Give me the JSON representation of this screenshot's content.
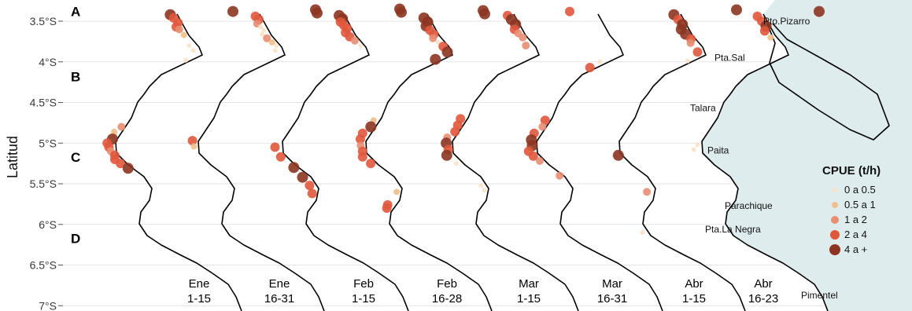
{
  "chart_data": {
    "type": "scatter",
    "ylabel": "Latitud",
    "y_ticks": [
      "3.5°S",
      "4°S",
      "4.5°S",
      "5°S",
      "5.5°S",
      "6°S",
      "6.5°S",
      "7°S"
    ],
    "ylim": [
      -7.0,
      -3.3
    ],
    "grid": true,
    "legend": {
      "title": "CPUE (t/h)",
      "placement": "right",
      "entries": [
        {
          "label": "0 a 0.5",
          "color": "#f8e3c8"
        },
        {
          "label": "0.5 a 1",
          "color": "#efc08c"
        },
        {
          "label": "1 a 2",
          "color": "#e88e72"
        },
        {
          "label": "2 a 4",
          "color": "#e0583c"
        },
        {
          "label": "4 a +",
          "color": "#8c3522"
        }
      ]
    },
    "bands": [
      {
        "label": "A",
        "lat": -3.38
      },
      {
        "label": "B",
        "lat": -4.18
      },
      {
        "label": "C",
        "lat": -5.17
      },
      {
        "label": "D",
        "lat": -6.17
      }
    ],
    "places": [
      {
        "name": "Pto.Pizarro",
        "lat": -3.5
      },
      {
        "name": "Pta.Sal",
        "lat": -3.95
      },
      {
        "name": "Talara",
        "lat": -4.57
      },
      {
        "name": "Paita",
        "lat": -5.09
      },
      {
        "name": "Parachique",
        "lat": -5.77
      },
      {
        "name": "Pta.La Negra",
        "lat": -6.06
      },
      {
        "name": "Pimentel",
        "lat": -6.87
      }
    ],
    "series": [
      {
        "name": "Ene 1-15",
        "line1": "Ene",
        "line2": "1-15",
        "points": [
          [
            -3.38,
            4
          ],
          [
            -3.42,
            4
          ],
          [
            -3.46,
            3
          ],
          [
            -3.52,
            3
          ],
          [
            -3.57,
            3
          ],
          [
            -3.6,
            2
          ],
          [
            -3.67,
            1
          ],
          [
            -3.8,
            0
          ],
          [
            -3.86,
            0
          ],
          [
            -3.98,
            0
          ],
          [
            -4.8,
            2
          ],
          [
            -4.86,
            1
          ],
          [
            -4.9,
            1
          ],
          [
            -4.95,
            4
          ],
          [
            -5.0,
            3
          ],
          [
            -5.05,
            3
          ],
          [
            -5.1,
            2
          ],
          [
            -5.15,
            3
          ],
          [
            -5.2,
            3
          ],
          [
            -5.25,
            3
          ],
          [
            -5.31,
            4
          ]
        ]
      },
      {
        "name": "Ene 16-31",
        "line1": "Ene",
        "line2": "16-31",
        "points": [
          [
            -3.36,
            4
          ],
          [
            -3.4,
            4
          ],
          [
            -3.44,
            3
          ],
          [
            -3.48,
            3
          ],
          [
            -3.53,
            2
          ],
          [
            -3.57,
            0
          ],
          [
            -3.61,
            0
          ],
          [
            -3.66,
            0
          ],
          [
            -3.71,
            2
          ],
          [
            -3.76,
            1
          ],
          [
            -3.8,
            0
          ],
          [
            -3.86,
            0
          ],
          [
            -4.97,
            3
          ],
          [
            -5.04,
            1
          ]
        ]
      },
      {
        "name": "Feb 1-15",
        "line1": "Feb",
        "line2": "1-15",
        "points": [
          [
            -3.35,
            4
          ],
          [
            -3.39,
            4
          ],
          [
            -3.43,
            4
          ],
          [
            -3.47,
            4
          ],
          [
            -3.51,
            3
          ],
          [
            -3.55,
            3
          ],
          [
            -3.59,
            3
          ],
          [
            -3.64,
            3
          ],
          [
            -3.69,
            3
          ],
          [
            -3.74,
            2
          ],
          [
            -3.8,
            0
          ],
          [
            -5.05,
            3
          ],
          [
            -5.17,
            3
          ],
          [
            -5.3,
            4
          ],
          [
            -5.42,
            4
          ],
          [
            -5.52,
            3
          ],
          [
            -5.62,
            3
          ]
        ]
      },
      {
        "name": "Feb 16-28",
        "line1": "Feb",
        "line2": "16-28",
        "points": [
          [
            -3.37,
            4
          ],
          [
            -3.41,
            4
          ],
          [
            -3.46,
            4
          ],
          [
            -3.51,
            4
          ],
          [
            -3.56,
            4
          ],
          [
            -3.61,
            3
          ],
          [
            -3.66,
            3
          ],
          [
            -3.71,
            2
          ],
          [
            -3.76,
            0
          ],
          [
            -3.81,
            3
          ],
          [
            -3.88,
            4
          ],
          [
            -3.97,
            4
          ],
          [
            -4.72,
            1
          ],
          [
            -4.8,
            4
          ],
          [
            -4.88,
            3
          ],
          [
            -4.95,
            3
          ],
          [
            -5.03,
            2
          ],
          [
            -5.1,
            3
          ],
          [
            -5.17,
            3
          ],
          [
            -5.25,
            3
          ],
          [
            -5.6,
            1
          ],
          [
            -5.76,
            3
          ],
          [
            -5.8,
            3
          ]
        ]
      },
      {
        "name": "Mar 1-15",
        "line1": "Mar",
        "line2": "1-15",
        "points": [
          [
            -3.38,
            3
          ],
          [
            -3.43,
            3
          ],
          [
            -3.48,
            4
          ],
          [
            -3.54,
            4
          ],
          [
            -3.6,
            3
          ],
          [
            -3.65,
            2
          ],
          [
            -3.7,
            2
          ],
          [
            -3.8,
            2
          ],
          [
            -4.7,
            3
          ],
          [
            -4.78,
            3
          ],
          [
            -4.86,
            3
          ],
          [
            -4.93,
            2
          ],
          [
            -5.0,
            4
          ],
          [
            -5.08,
            3
          ],
          [
            -5.15,
            4
          ],
          [
            -5.25,
            0
          ],
          [
            -5.52,
            0
          ],
          [
            -5.58,
            0
          ]
        ]
      },
      {
        "name": "Mar 16-31",
        "line1": "Mar",
        "line2": "16-31",
        "points": [
          [
            -4.0,
            0
          ],
          [
            -4.07,
            3
          ],
          [
            -4.72,
            3
          ],
          [
            -4.8,
            2
          ],
          [
            -4.88,
            3
          ],
          [
            -4.96,
            4
          ],
          [
            -5.03,
            4
          ],
          [
            -5.1,
            3
          ],
          [
            -5.16,
            3
          ],
          [
            -5.22,
            2
          ],
          [
            -5.4,
            2
          ]
        ]
      },
      {
        "name": "Abr 1-15",
        "line1": "Abr",
        "line2": "1-15",
        "points": [
          [
            -3.36,
            4
          ],
          [
            -3.42,
            4
          ],
          [
            -3.48,
            3
          ],
          [
            -3.54,
            4
          ],
          [
            -3.6,
            4
          ],
          [
            -3.66,
            4
          ],
          [
            -3.72,
            3
          ],
          [
            -3.77,
            2
          ],
          [
            -3.88,
            3
          ],
          [
            -3.99,
            0
          ],
          [
            -5.15,
            4
          ],
          [
            -5.6,
            2
          ],
          [
            -6.1,
            0
          ]
        ]
      },
      {
        "name": "Abr 16-23",
        "line1": "Abr",
        "line2": "16-23",
        "points": [
          [
            -3.38,
            4
          ],
          [
            -3.44,
            3
          ],
          [
            -3.5,
            3
          ],
          [
            -3.56,
            4
          ],
          [
            -3.62,
            3
          ],
          [
            -3.7,
            1
          ],
          [
            -5.02,
            0
          ],
          [
            -5.08,
            0
          ]
        ]
      }
    ]
  }
}
